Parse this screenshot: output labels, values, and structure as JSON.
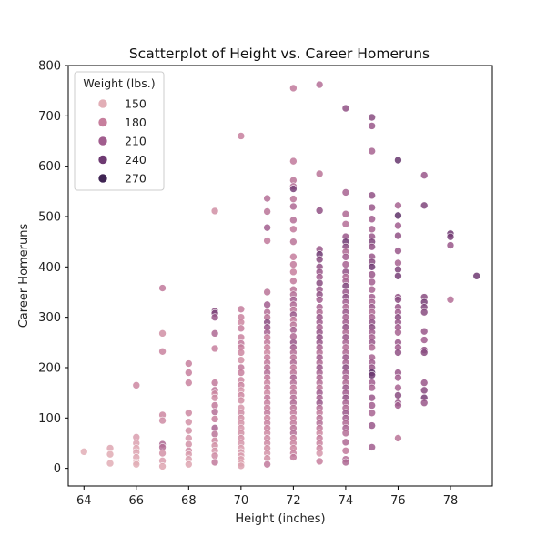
{
  "chart_data": {
    "type": "scatter",
    "title": "Scatterplot of Height vs. Career Homeruns",
    "xlabel": "Height (inches)",
    "ylabel": "Career Homeruns",
    "xlim": [
      63.4,
      79.6
    ],
    "ylim": [
      -35,
      800
    ],
    "xticks": [
      64,
      66,
      68,
      70,
      72,
      74,
      76,
      78
    ],
    "yticks": [
      0,
      100,
      200,
      300,
      400,
      500,
      600,
      700,
      800
    ],
    "grid": false,
    "legend": {
      "title": "Weight (lbs.)",
      "placement": "top-left",
      "entries": [
        {
          "label": "150",
          "color": "#e2aeb6"
        },
        {
          "label": "180",
          "color": "#c77f9d"
        },
        {
          "label": "210",
          "color": "#a15d8e"
        },
        {
          "label": "240",
          "color": "#6e3a72"
        },
        {
          "label": "270",
          "color": "#3f2453"
        }
      ]
    },
    "hue_scale": {
      "min": 140,
      "max": 275
    },
    "points": [
      [
        64,
        33,
        150
      ],
      [
        65,
        40,
        155
      ],
      [
        65,
        28,
        152
      ],
      [
        65,
        10,
        150
      ],
      [
        66,
        165,
        175
      ],
      [
        66,
        62,
        160
      ],
      [
        66,
        50,
        158
      ],
      [
        66,
        40,
        155
      ],
      [
        66,
        32,
        157
      ],
      [
        66,
        22,
        155
      ],
      [
        66,
        12,
        152
      ],
      [
        66,
        8,
        150
      ],
      [
        67,
        358,
        185
      ],
      [
        67,
        268,
        170
      ],
      [
        67,
        232,
        178
      ],
      [
        67,
        106,
        175
      ],
      [
        67,
        95,
        172
      ],
      [
        67,
        48,
        200
      ],
      [
        67,
        42,
        195
      ],
      [
        67,
        30,
        168
      ],
      [
        67,
        15,
        160
      ],
      [
        67,
        4,
        155
      ],
      [
        68,
        208,
        180
      ],
      [
        68,
        190,
        180
      ],
      [
        68,
        170,
        178
      ],
      [
        68,
        110,
        175
      ],
      [
        68,
        92,
        168
      ],
      [
        68,
        75,
        170
      ],
      [
        68,
        60,
        165
      ],
      [
        68,
        48,
        168
      ],
      [
        68,
        35,
        175
      ],
      [
        68,
        28,
        160
      ],
      [
        68,
        18,
        158
      ],
      [
        68,
        8,
        155
      ],
      [
        69,
        511,
        170
      ],
      [
        69,
        312,
        225
      ],
      [
        69,
        308,
        230
      ],
      [
        69,
        300,
        215
      ],
      [
        69,
        268,
        200
      ],
      [
        69,
        238,
        180
      ],
      [
        69,
        170,
        185
      ],
      [
        69,
        155,
        190
      ],
      [
        69,
        148,
        175
      ],
      [
        69,
        140,
        172
      ],
      [
        69,
        125,
        185
      ],
      [
        69,
        112,
        195
      ],
      [
        69,
        98,
        180
      ],
      [
        69,
        80,
        205
      ],
      [
        69,
        68,
        190
      ],
      [
        69,
        55,
        175
      ],
      [
        69,
        45,
        170
      ],
      [
        69,
        35,
        165
      ],
      [
        69,
        25,
        172
      ],
      [
        69,
        12,
        185
      ],
      [
        70,
        660,
        180
      ],
      [
        70,
        316,
        182
      ],
      [
        70,
        300,
        178
      ],
      [
        70,
        290,
        175
      ],
      [
        70,
        278,
        180
      ],
      [
        70,
        260,
        178
      ],
      [
        70,
        248,
        185
      ],
      [
        70,
        240,
        180
      ],
      [
        70,
        230,
        175
      ],
      [
        70,
        215,
        170
      ],
      [
        70,
        200,
        185
      ],
      [
        70,
        190,
        180
      ],
      [
        70,
        175,
        175
      ],
      [
        70,
        165,
        178
      ],
      [
        70,
        155,
        165
      ],
      [
        70,
        145,
        175
      ],
      [
        70,
        135,
        170
      ],
      [
        70,
        120,
        165
      ],
      [
        70,
        110,
        172
      ],
      [
        70,
        100,
        170
      ],
      [
        70,
        90,
        168
      ],
      [
        70,
        80,
        165
      ],
      [
        70,
        70,
        170
      ],
      [
        70,
        60,
        168
      ],
      [
        70,
        50,
        165
      ],
      [
        70,
        40,
        160
      ],
      [
        70,
        32,
        162
      ],
      [
        70,
        25,
        160
      ],
      [
        70,
        18,
        158
      ],
      [
        70,
        10,
        155
      ],
      [
        70,
        5,
        158
      ],
      [
        71,
        536,
        195
      ],
      [
        71,
        510,
        190
      ],
      [
        71,
        478,
        210
      ],
      [
        71,
        452,
        185
      ],
      [
        71,
        350,
        190
      ],
      [
        71,
        325,
        210
      ],
      [
        71,
        310,
        195
      ],
      [
        71,
        300,
        190
      ],
      [
        71,
        290,
        225
      ],
      [
        71,
        280,
        215
      ],
      [
        71,
        270,
        205
      ],
      [
        71,
        260,
        180
      ],
      [
        71,
        250,
        185
      ],
      [
        71,
        240,
        178
      ],
      [
        71,
        230,
        175
      ],
      [
        71,
        220,
        180
      ],
      [
        71,
        210,
        185
      ],
      [
        71,
        200,
        190
      ],
      [
        71,
        190,
        195
      ],
      [
        71,
        180,
        185
      ],
      [
        71,
        170,
        178
      ],
      [
        71,
        160,
        180
      ],
      [
        71,
        150,
        175
      ],
      [
        71,
        140,
        185
      ],
      [
        71,
        130,
        180
      ],
      [
        71,
        120,
        178
      ],
      [
        71,
        110,
        185
      ],
      [
        71,
        100,
        175
      ],
      [
        71,
        90,
        180
      ],
      [
        71,
        80,
        178
      ],
      [
        71,
        70,
        175
      ],
      [
        71,
        60,
        172
      ],
      [
        71,
        50,
        175
      ],
      [
        71,
        40,
        170
      ],
      [
        71,
        30,
        168
      ],
      [
        71,
        20,
        170
      ],
      [
        71,
        8,
        185
      ],
      [
        72,
        755,
        185
      ],
      [
        72,
        610,
        185
      ],
      [
        72,
        572,
        190
      ],
      [
        72,
        560,
        195
      ],
      [
        72,
        555,
        235
      ],
      [
        72,
        535,
        190
      ],
      [
        72,
        520,
        200
      ],
      [
        72,
        493,
        195
      ],
      [
        72,
        475,
        185
      ],
      [
        72,
        450,
        190
      ],
      [
        72,
        420,
        182
      ],
      [
        72,
        405,
        185
      ],
      [
        72,
        390,
        180
      ],
      [
        72,
        372,
        185
      ],
      [
        72,
        355,
        190
      ],
      [
        72,
        345,
        195
      ],
      [
        72,
        335,
        210
      ],
      [
        72,
        325,
        200
      ],
      [
        72,
        315,
        190
      ],
      [
        72,
        305,
        215
      ],
      [
        72,
        295,
        185
      ],
      [
        72,
        285,
        190
      ],
      [
        72,
        275,
        205
      ],
      [
        72,
        262,
        200
      ],
      [
        72,
        250,
        215
      ],
      [
        72,
        240,
        210
      ],
      [
        72,
        230,
        195
      ],
      [
        72,
        220,
        190
      ],
      [
        72,
        210,
        200
      ],
      [
        72,
        200,
        185
      ],
      [
        72,
        190,
        190
      ],
      [
        72,
        180,
        205
      ],
      [
        72,
        170,
        195
      ],
      [
        72,
        160,
        185
      ],
      [
        72,
        150,
        190
      ],
      [
        72,
        140,
        195
      ],
      [
        72,
        130,
        200
      ],
      [
        72,
        120,
        190
      ],
      [
        72,
        110,
        185
      ],
      [
        72,
        100,
        180
      ],
      [
        72,
        90,
        185
      ],
      [
        72,
        80,
        190
      ],
      [
        72,
        70,
        195
      ],
      [
        72,
        60,
        180
      ],
      [
        72,
        50,
        178
      ],
      [
        72,
        40,
        175
      ],
      [
        72,
        30,
        180
      ],
      [
        72,
        22,
        185
      ],
      [
        73,
        762,
        195
      ],
      [
        73,
        585,
        190
      ],
      [
        73,
        512,
        220
      ],
      [
        73,
        435,
        215
      ],
      [
        73,
        425,
        240
      ],
      [
        73,
        415,
        225
      ],
      [
        73,
        400,
        220
      ],
      [
        73,
        390,
        215
      ],
      [
        73,
        380,
        210
      ],
      [
        73,
        368,
        225
      ],
      [
        73,
        355,
        215
      ],
      [
        73,
        345,
        220
      ],
      [
        73,
        335,
        210
      ],
      [
        73,
        320,
        205
      ],
      [
        73,
        310,
        200
      ],
      [
        73,
        300,
        215
      ],
      [
        73,
        290,
        210
      ],
      [
        73,
        280,
        205
      ],
      [
        73,
        270,
        215
      ],
      [
        73,
        260,
        220
      ],
      [
        73,
        250,
        215
      ],
      [
        73,
        240,
        205
      ],
      [
        73,
        230,
        195
      ],
      [
        73,
        220,
        210
      ],
      [
        73,
        210,
        200
      ],
      [
        73,
        200,
        215
      ],
      [
        73,
        190,
        205
      ],
      [
        73,
        180,
        200
      ],
      [
        73,
        170,
        195
      ],
      [
        73,
        160,
        190
      ],
      [
        73,
        150,
        210
      ],
      [
        73,
        140,
        205
      ],
      [
        73,
        130,
        215
      ],
      [
        73,
        120,
        195
      ],
      [
        73,
        110,
        185
      ],
      [
        73,
        100,
        190
      ],
      [
        73,
        90,
        195
      ],
      [
        73,
        80,
        185
      ],
      [
        73,
        70,
        175
      ],
      [
        73,
        60,
        180
      ],
      [
        73,
        50,
        178
      ],
      [
        73,
        40,
        175
      ],
      [
        73,
        30,
        165
      ],
      [
        73,
        14,
        180
      ],
      [
        74,
        715,
        220
      ],
      [
        74,
        548,
        205
      ],
      [
        74,
        505,
        200
      ],
      [
        74,
        485,
        195
      ],
      [
        74,
        460,
        215
      ],
      [
        74,
        450,
        240
      ],
      [
        74,
        440,
        225
      ],
      [
        74,
        430,
        200
      ],
      [
        74,
        420,
        210
      ],
      [
        74,
        405,
        205
      ],
      [
        74,
        390,
        220
      ],
      [
        74,
        380,
        200
      ],
      [
        74,
        372,
        205
      ],
      [
        74,
        362,
        230
      ],
      [
        74,
        350,
        215
      ],
      [
        74,
        340,
        225
      ],
      [
        74,
        330,
        210
      ],
      [
        74,
        320,
        200
      ],
      [
        74,
        310,
        215
      ],
      [
        74,
        300,
        205
      ],
      [
        74,
        290,
        210
      ],
      [
        74,
        280,
        220
      ],
      [
        74,
        270,
        200
      ],
      [
        74,
        260,
        215
      ],
      [
        74,
        250,
        205
      ],
      [
        74,
        240,
        195
      ],
      [
        74,
        230,
        200
      ],
      [
        74,
        220,
        215
      ],
      [
        74,
        210,
        205
      ],
      [
        74,
        200,
        225
      ],
      [
        74,
        190,
        210
      ],
      [
        74,
        180,
        205
      ],
      [
        74,
        170,
        200
      ],
      [
        74,
        160,
        215
      ],
      [
        74,
        150,
        210
      ],
      [
        74,
        140,
        220
      ],
      [
        74,
        130,
        205
      ],
      [
        74,
        120,
        200
      ],
      [
        74,
        110,
        215
      ],
      [
        74,
        100,
        210
      ],
      [
        74,
        90,
        200
      ],
      [
        74,
        80,
        205
      ],
      [
        74,
        70,
        195
      ],
      [
        74,
        52,
        200
      ],
      [
        74,
        35,
        185
      ],
      [
        74,
        18,
        195
      ],
      [
        74,
        12,
        200
      ],
      [
        75,
        697,
        225
      ],
      [
        75,
        680,
        215
      ],
      [
        75,
        630,
        205
      ],
      [
        75,
        542,
        220
      ],
      [
        75,
        518,
        215
      ],
      [
        75,
        495,
        210
      ],
      [
        75,
        475,
        205
      ],
      [
        75,
        460,
        215
      ],
      [
        75,
        450,
        230
      ],
      [
        75,
        440,
        220
      ],
      [
        75,
        420,
        215
      ],
      [
        75,
        410,
        225
      ],
      [
        75,
        400,
        240
      ],
      [
        75,
        385,
        215
      ],
      [
        75,
        370,
        210
      ],
      [
        75,
        355,
        205
      ],
      [
        75,
        340,
        210
      ],
      [
        75,
        330,
        205
      ],
      [
        75,
        320,
        215
      ],
      [
        75,
        310,
        200
      ],
      [
        75,
        300,
        205
      ],
      [
        75,
        290,
        220
      ],
      [
        75,
        280,
        225
      ],
      [
        75,
        270,
        210
      ],
      [
        75,
        260,
        205
      ],
      [
        75,
        250,
        215
      ],
      [
        75,
        240,
        200
      ],
      [
        75,
        220,
        205
      ],
      [
        75,
        210,
        210
      ],
      [
        75,
        200,
        215
      ],
      [
        75,
        190,
        250
      ],
      [
        75,
        185,
        240
      ],
      [
        75,
        170,
        210
      ],
      [
        75,
        160,
        205
      ],
      [
        75,
        140,
        215
      ],
      [
        75,
        125,
        210
      ],
      [
        75,
        110,
        205
      ],
      [
        75,
        85,
        215
      ],
      [
        75,
        42,
        210
      ],
      [
        76,
        612,
        245
      ],
      [
        76,
        522,
        205
      ],
      [
        76,
        502,
        250
      ],
      [
        76,
        482,
        210
      ],
      [
        76,
        462,
        220
      ],
      [
        76,
        432,
        215
      ],
      [
        76,
        408,
        205
      ],
      [
        76,
        395,
        230
      ],
      [
        76,
        382,
        235
      ],
      [
        76,
        340,
        220
      ],
      [
        76,
        335,
        225
      ],
      [
        76,
        320,
        215
      ],
      [
        76,
        310,
        210
      ],
      [
        76,
        300,
        225
      ],
      [
        76,
        290,
        215
      ],
      [
        76,
        280,
        210
      ],
      [
        76,
        270,
        205
      ],
      [
        76,
        250,
        215
      ],
      [
        76,
        240,
        210
      ],
      [
        76,
        230,
        220
      ],
      [
        76,
        190,
        215
      ],
      [
        76,
        180,
        210
      ],
      [
        76,
        160,
        205
      ],
      [
        76,
        145,
        225
      ],
      [
        76,
        130,
        215
      ],
      [
        76,
        125,
        210
      ],
      [
        76,
        60,
        190
      ],
      [
        77,
        582,
        215
      ],
      [
        77,
        522,
        230
      ],
      [
        77,
        340,
        225
      ],
      [
        77,
        330,
        235
      ],
      [
        77,
        320,
        230
      ],
      [
        77,
        310,
        225
      ],
      [
        77,
        272,
        215
      ],
      [
        77,
        255,
        210
      ],
      [
        77,
        235,
        220
      ],
      [
        77,
        230,
        225
      ],
      [
        77,
        170,
        215
      ],
      [
        77,
        155,
        225
      ],
      [
        77,
        140,
        235
      ],
      [
        77,
        130,
        215
      ],
      [
        78,
        466,
        240
      ],
      [
        78,
        460,
        235
      ],
      [
        78,
        443,
        215
      ],
      [
        78,
        335,
        195
      ],
      [
        79,
        382,
        240
      ]
    ]
  }
}
